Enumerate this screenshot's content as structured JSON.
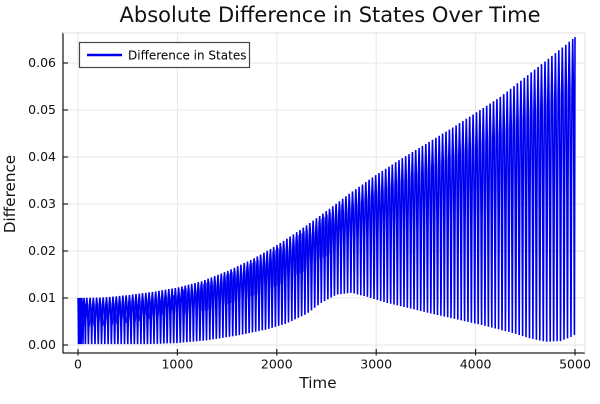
{
  "title": "Absolute Difference in States Over Time",
  "legend": {
    "label": "Difference in States"
  },
  "axes": {
    "xlabel": "Time",
    "ylabel": "Difference",
    "x_ticks": [
      0,
      1000,
      2000,
      3000,
      4000,
      5000
    ],
    "x_tick_labels": [
      "0",
      "1000",
      "2000",
      "3000",
      "4000",
      "5000"
    ],
    "y_ticks": [
      0,
      0.01,
      0.02,
      0.03,
      0.04,
      0.05,
      0.06
    ],
    "y_tick_labels": [
      "0.00",
      "0.01",
      "0.02",
      "0.03",
      "0.04",
      "0.05",
      "0.06"
    ]
  },
  "colors": {
    "line": "#0000f0",
    "grid": "#e7e7e7",
    "spine_dark": "#222222",
    "spine_light": "#e0e0e0",
    "legend_border": "#454545",
    "text": "#111111"
  },
  "chart_data": {
    "type": "line",
    "title": "Absolute Difference in States Over Time",
    "xlabel": "Time",
    "ylabel": "Difference",
    "xlim": [
      -150,
      5100
    ],
    "ylim": [
      -0.0017,
      0.0664
    ],
    "grid": true,
    "legend_position": "top-left",
    "series": [
      {
        "name": "Difference in States",
        "color": "#0000f0"
      }
    ],
    "description": "Absolute difference oscillating rapidly between a lower and an upper envelope; dense interference bands over the first ~2600 time units",
    "oscillation": {
      "stripe_spacing_profile": [
        [
          0,
          10
        ],
        [
          80,
          33
        ],
        [
          2500,
          33
        ],
        [
          5000,
          35
        ]
      ]
    },
    "left_band": {
      "period": 46,
      "t_end": 1060,
      "bottom": [
        [
          0,
          0.0038
        ],
        [
          300,
          0.0042
        ],
        [
          600,
          0.005
        ],
        [
          800,
          0.006
        ],
        [
          950,
          0.0075
        ],
        [
          1060,
          0.0094
        ]
      ],
      "top": [
        [
          0,
          0.0078
        ],
        [
          300,
          0.008
        ],
        [
          600,
          0.0086
        ],
        [
          800,
          0.0094
        ],
        [
          950,
          0.0104
        ],
        [
          1060,
          0.0116
        ]
      ]
    },
    "mid_band": {
      "period": 29,
      "t_start": 1060,
      "t_end": 2650,
      "bottom_fraction": 0.5,
      "top_fraction": 0.95
    },
    "upper_envelope": [
      [
        0,
        0.01
      ],
      [
        250,
        0.0101
      ],
      [
        500,
        0.0106
      ],
      [
        750,
        0.0113
      ],
      [
        1000,
        0.0122
      ],
      [
        1250,
        0.0136
      ],
      [
        1500,
        0.0157
      ],
      [
        1750,
        0.0182
      ],
      [
        2000,
        0.0212
      ],
      [
        2250,
        0.0247
      ],
      [
        2500,
        0.0285
      ],
      [
        2750,
        0.0325
      ],
      [
        3000,
        0.0362
      ],
      [
        3250,
        0.0396
      ],
      [
        3500,
        0.0428
      ],
      [
        3750,
        0.046
      ],
      [
        4000,
        0.0494
      ],
      [
        4250,
        0.0528
      ],
      [
        4500,
        0.057
      ],
      [
        4750,
        0.0612
      ],
      [
        5000,
        0.0655
      ]
    ],
    "lower_envelope": [
      [
        0,
        0.0002
      ],
      [
        700,
        0.0002
      ],
      [
        1000,
        0.0004
      ],
      [
        1300,
        0.001
      ],
      [
        1600,
        0.002
      ],
      [
        1900,
        0.0033
      ],
      [
        2100,
        0.0046
      ],
      [
        2300,
        0.0066
      ],
      [
        2450,
        0.009
      ],
      [
        2600,
        0.0107
      ],
      [
        2750,
        0.0111
      ],
      [
        2900,
        0.0103
      ],
      [
        3100,
        0.009
      ],
      [
        3550,
        0.0067
      ],
      [
        4050,
        0.0043
      ],
      [
        4350,
        0.0027
      ],
      [
        4550,
        0.0014
      ],
      [
        4700,
        0.0007
      ],
      [
        4850,
        0.0008
      ],
      [
        4950,
        0.0016
      ],
      [
        5000,
        0.0022
      ]
    ]
  }
}
